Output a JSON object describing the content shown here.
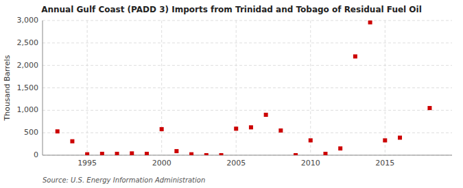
{
  "chart_data": {
    "type": "scatter",
    "title": "Annual Gulf Coast (PADD 3) Imports from Trinidad and Tobago of Residual Fuel Oil",
    "ylabel": "Thousand Barrels",
    "source": "Source: U.S. Energy Information Administration",
    "x": [
      1993,
      1994,
      1995,
      1996,
      1997,
      1998,
      1999,
      2000,
      2001,
      2002,
      2003,
      2004,
      2005,
      2006,
      2007,
      2008,
      2009,
      2010,
      2011,
      2012,
      2013,
      2014,
      2015,
      2016,
      2018
    ],
    "values": [
      530,
      310,
      20,
      30,
      30,
      40,
      30,
      580,
      90,
      20,
      0,
      0,
      590,
      620,
      900,
      550,
      0,
      330,
      30,
      150,
      2200,
      2960,
      330,
      390,
      1050
    ],
    "color": "#cc0000",
    "marker": "square",
    "xlim": [
      1992,
      2019.5
    ],
    "xticks": [
      1995,
      2000,
      2005,
      2010,
      2015
    ],
    "ylim": [
      0,
      3000
    ],
    "yticks": [
      0,
      500,
      {
        "value": 1000,
        "label": "1,000"
      },
      {
        "value": 1500,
        "label": "1,500"
      },
      {
        "value": 2000,
        "label": "2,000"
      },
      {
        "value": 2500,
        "label": "2,500"
      },
      {
        "value": 3000,
        "label": "3,000"
      }
    ],
    "grid": true
  }
}
